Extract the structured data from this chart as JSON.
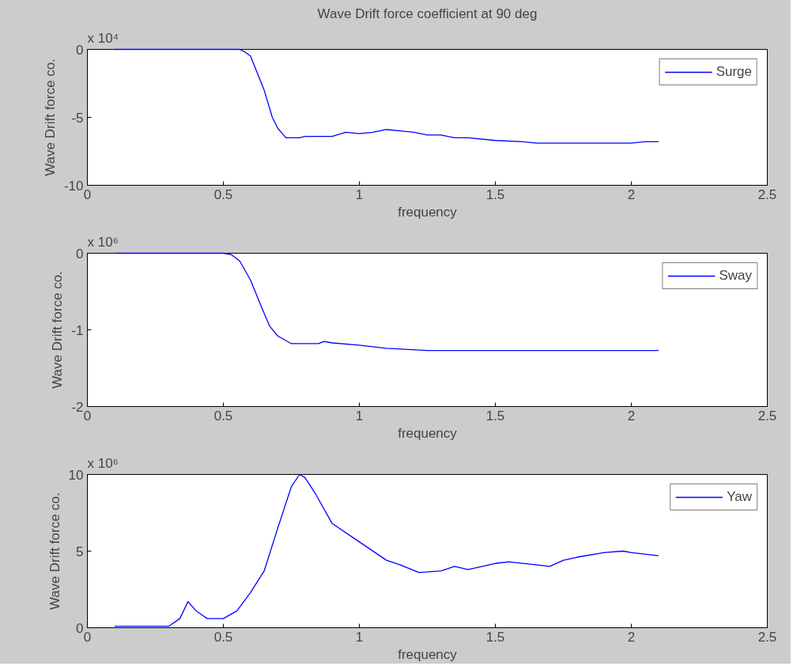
{
  "chart_data": [
    {
      "type": "line",
      "title": "Wave Drift force coefficient at 90 deg",
      "xlabel": "frequency",
      "ylabel": "Wave Drift force co.",
      "xlim": [
        0,
        2.5
      ],
      "xticks": [
        0,
        0.5,
        1,
        1.5,
        2,
        2.5
      ],
      "ylim": [
        -10,
        0
      ],
      "yticks": [
        -10,
        -5,
        0
      ],
      "annotations": [
        "x 10⁴"
      ],
      "legend": "top right",
      "line_style": "solid",
      "marker": "none",
      "series": [
        {
          "name": "Surge",
          "color": "#0000ff",
          "x": [
            0.1,
            0.3,
            0.56,
            0.58,
            0.6,
            0.62,
            0.65,
            0.68,
            0.7,
            0.73,
            0.78,
            0.8,
            0.9,
            0.95,
            1.0,
            1.05,
            1.1,
            1.15,
            1.2,
            1.25,
            1.3,
            1.35,
            1.4,
            1.5,
            1.6,
            1.65,
            1.8,
            2.0,
            2.05,
            2.1
          ],
          "values": [
            0,
            0,
            0,
            -0.2,
            -0.5,
            -1.5,
            -3,
            -5,
            -5.8,
            -6.5,
            -6.5,
            -6.4,
            -6.4,
            -6.1,
            -6.2,
            -6.1,
            -5.9,
            -6.0,
            -6.1,
            -6.3,
            -6.3,
            -6.5,
            -6.5,
            -6.7,
            -6.8,
            -6.9,
            -6.9,
            -6.9,
            -6.8,
            -6.8
          ]
        }
      ]
    },
    {
      "type": "line",
      "xlabel": "frequency",
      "ylabel": "Wave Drift force co.",
      "xlim": [
        0,
        2.5
      ],
      "xticks": [
        0,
        0.5,
        1,
        1.5,
        2,
        2.5
      ],
      "ylim": [
        -2,
        0
      ],
      "yticks": [
        -2,
        -1,
        0
      ],
      "annotations": [
        "x 10⁶"
      ],
      "legend": "top right",
      "line_style": "solid",
      "marker": "none",
      "series": [
        {
          "name": "Sway",
          "color": "#0000ff",
          "x": [
            0.1,
            0.3,
            0.5,
            0.53,
            0.56,
            0.6,
            0.64,
            0.67,
            0.7,
            0.75,
            0.85,
            0.87,
            0.9,
            1.0,
            1.1,
            1.25,
            1.6,
            2.1
          ],
          "values": [
            0,
            0,
            0,
            -0.02,
            -0.1,
            -0.35,
            -0.7,
            -0.95,
            -1.08,
            -1.18,
            -1.18,
            -1.15,
            -1.17,
            -1.2,
            -1.24,
            -1.27,
            -1.27,
            -1.27
          ]
        }
      ]
    },
    {
      "type": "line",
      "xlabel": "frequency",
      "ylabel": "Wave Drift force co.",
      "xlim": [
        0,
        2.5
      ],
      "xticks": [
        0,
        0.5,
        1,
        1.5,
        2,
        2.5
      ],
      "ylim": [
        0,
        10
      ],
      "yticks": [
        0,
        5,
        10
      ],
      "annotations": [
        "x 10⁶"
      ],
      "legend": "top right",
      "line_style": "solid",
      "marker": "none",
      "series": [
        {
          "name": "Yaw",
          "color": "#0000ff",
          "x": [
            0.1,
            0.3,
            0.34,
            0.37,
            0.4,
            0.44,
            0.5,
            0.55,
            0.6,
            0.65,
            0.7,
            0.75,
            0.78,
            0.8,
            0.84,
            0.9,
            1.0,
            1.1,
            1.15,
            1.22,
            1.3,
            1.35,
            1.4,
            1.5,
            1.55,
            1.65,
            1.7,
            1.75,
            1.8,
            1.9,
            1.97,
            2.0,
            2.05,
            2.1
          ],
          "values": [
            0.1,
            0.1,
            0.6,
            1.7,
            1.1,
            0.6,
            0.6,
            1.1,
            2.3,
            3.7,
            6.5,
            9.2,
            10,
            9.8,
            8.7,
            6.8,
            5.6,
            4.4,
            4.1,
            3.6,
            3.7,
            4.0,
            3.8,
            4.2,
            4.3,
            4.1,
            4.0,
            4.4,
            4.6,
            4.9,
            5.0,
            4.9,
            4.8,
            4.7
          ]
        }
      ]
    }
  ]
}
